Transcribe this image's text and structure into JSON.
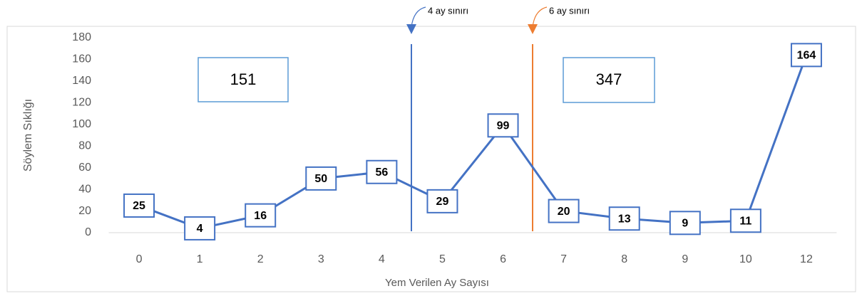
{
  "chart_data": {
    "type": "line",
    "y_label": "Söylem Sıklığı",
    "x_label": "Yem Verilen Ay  Sayısı",
    "categories": [
      "0",
      "1",
      "2",
      "3",
      "4",
      "5",
      "6",
      "7",
      "8",
      "9",
      "10",
      "12"
    ],
    "series": [
      {
        "name": "Söylem Sıklığı",
        "color": "#4472c4",
        "values": [
          25,
          4,
          16,
          50,
          56,
          29,
          99,
          20,
          13,
          9,
          11,
          164
        ]
      }
    ],
    "ylim": [
      0,
      180
    ],
    "yticks": [
      0,
      20,
      40,
      60,
      80,
      100,
      120,
      140,
      160,
      180
    ],
    "grid": false,
    "annotations": [
      {
        "text": "4 ay sınırı",
        "color": "#4472c4"
      },
      {
        "text": "6 ay sınırı",
        "color": "#ed7d31"
      },
      {
        "text": "151"
      },
      {
        "text": "347"
      }
    ]
  }
}
